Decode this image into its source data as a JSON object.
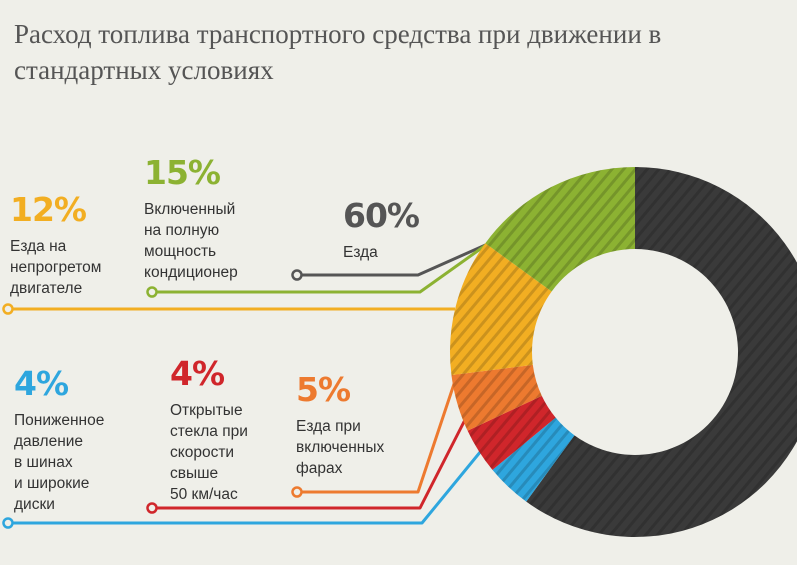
{
  "title": "Расход топлива транспортного средства при движении в стандартных условиях",
  "colors": {
    "background": "#efefe9",
    "driving": "#3a3a3a",
    "ac": "#8cb232",
    "cold_engine": "#f2ae22",
    "lights": "#ed7a2f",
    "windows": "#d0262b",
    "tires": "#2ea6de"
  },
  "chart_data": {
    "type": "pie",
    "style": "donut",
    "slices": [
      {
        "key": "driving",
        "value": 60,
        "label": "60%",
        "description": "Езда",
        "color": "#3a3a3a"
      },
      {
        "key": "tires",
        "value": 4,
        "label": "4%",
        "description": "Пониженное\nдавление\nв шинах\nи широкие\nдиски",
        "color": "#2ea6de"
      },
      {
        "key": "windows",
        "value": 4,
        "label": "4%",
        "description": "Открытые\nстекла при\nскорости\nсвыше\n50 км/час",
        "color": "#d0262b"
      },
      {
        "key": "lights",
        "value": 5,
        "label": "5%",
        "description": "Езда при\nвключенных\nфарах",
        "color": "#ed7a2f"
      },
      {
        "key": "cold_engine",
        "value": 12,
        "label": "12%",
        "description": "Езда на\nнепрогретом\nдвигателе",
        "color": "#f2ae22"
      },
      {
        "key": "ac",
        "value": 15,
        "label": "15%",
        "description": "Включенный\nна полную\nмощность\nкондиционер",
        "color": "#8cb232"
      }
    ]
  }
}
